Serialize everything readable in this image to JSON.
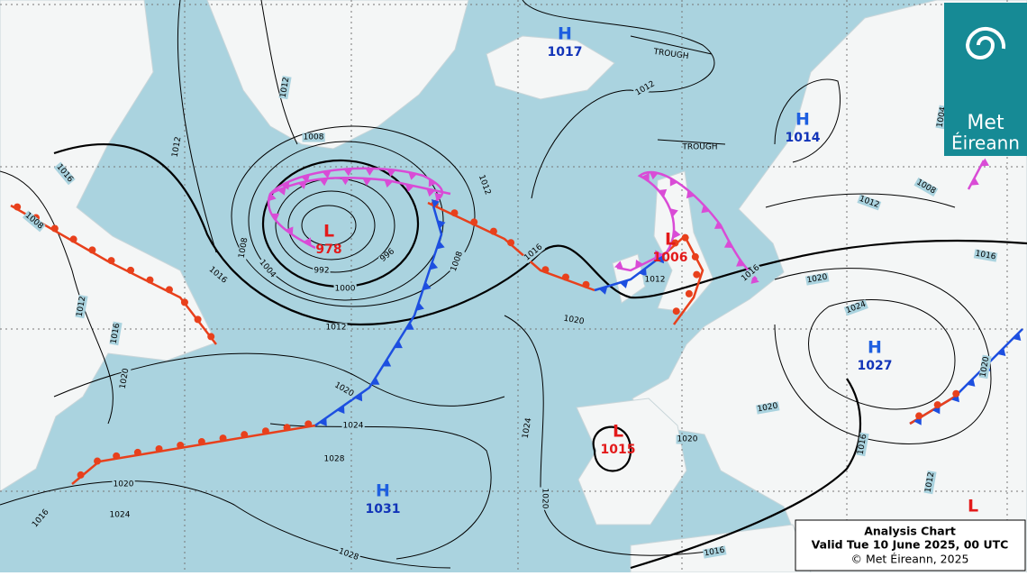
{
  "pressure_centers": [
    {
      "symbol": "H",
      "value": "1017"
    },
    {
      "symbol": "H",
      "value": "1014"
    },
    {
      "symbol": "L",
      "value": "978"
    },
    {
      "symbol": "L",
      "value": "1006"
    },
    {
      "symbol": "H",
      "value": "1027"
    },
    {
      "symbol": "L",
      "value": "1015"
    },
    {
      "symbol": "H",
      "value": "1031"
    },
    {
      "symbol": "L"
    }
  ],
  "isobar_labels": [
    "1012",
    "1008",
    "1012",
    "1016",
    "1008",
    "1008",
    "1004",
    "992",
    "1000",
    "996",
    "1008",
    "1012",
    "1012",
    "1016",
    "1012",
    "1016",
    "1020",
    "1020",
    "1024",
    "1028",
    "1020",
    "1024",
    "1016",
    "1028",
    "1024",
    "1020",
    "1016",
    "1020",
    "1020",
    "1016",
    "1012",
    "1024",
    "1020",
    "1016",
    "1012",
    "1008",
    "1004",
    "1012",
    "1016",
    "1020",
    "1012",
    "1016",
    "1020"
  ],
  "trough_labels": [
    "TROUGH",
    "TROUGH"
  ],
  "caption": {
    "title": "Analysis Chart",
    "valid": "Valid Tue 10 June 2025, 00 UTC",
    "copyright": "© Met Éireann, 2025"
  },
  "logo": {
    "line1": "Met",
    "line2": "Éireann"
  }
}
